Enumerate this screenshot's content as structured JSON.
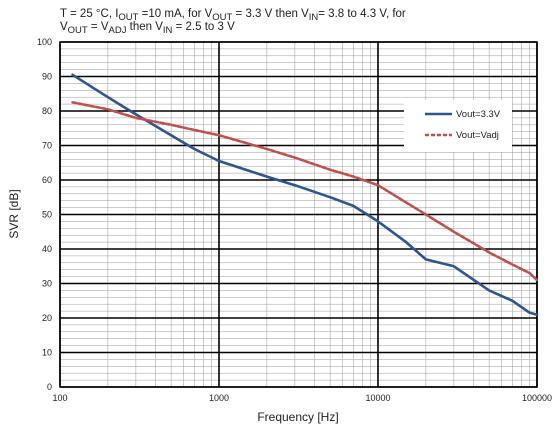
{
  "chart_data": {
    "type": "line",
    "title_line1_parts": [
      "T = 25 °C, I",
      "OUT",
      " =10 mA, for V",
      "OUT",
      " = 3.3 V then V",
      "IN",
      "= 3.8 to 4.3 V, for"
    ],
    "title_line2_parts": [
      "V",
      "OUT",
      " = V",
      "ADJ",
      " then V",
      "IN",
      " = 2.5 to 3 V"
    ],
    "xlabel": "Frequency [Hz]",
    "ylabel": "SVR [dB]",
    "xscale": "log",
    "xlim": [
      100,
      100000
    ],
    "ylim": [
      0,
      100
    ],
    "x_ticks": [
      100,
      1000,
      10000,
      100000
    ],
    "x_tick_labels": [
      "100",
      "1000",
      "10000",
      "100000"
    ],
    "y_ticks": [
      0,
      10,
      20,
      30,
      40,
      50,
      60,
      70,
      80,
      90,
      100
    ],
    "y_tick_labels": [
      "0",
      "10",
      "20",
      "30",
      "40",
      "50",
      "60",
      "70",
      "80",
      "90",
      "100"
    ],
    "grid": true,
    "legend_position": "upper-right",
    "series": [
      {
        "name": "Vout=3.3V",
        "color": "#2e5590",
        "dash": "solid",
        "x": [
          120,
          200,
          300,
          500,
          700,
          1000,
          2000,
          3000,
          5000,
          7000,
          10000,
          15000,
          20000,
          30000,
          50000,
          70000,
          90000,
          100000
        ],
        "y": [
          90.5,
          84,
          79,
          73,
          69,
          65.5,
          61,
          58.5,
          55,
          52.5,
          48,
          42,
          37,
          35,
          28,
          25,
          21.5,
          21
        ]
      },
      {
        "name": "Vout=Vadj",
        "color": "#c0504d",
        "dash": "dashed",
        "x": [
          120,
          200,
          300,
          500,
          700,
          1000,
          2000,
          3000,
          5000,
          7000,
          10000,
          15000,
          20000,
          30000,
          50000,
          70000,
          90000,
          100000
        ],
        "y": [
          82.5,
          80.5,
          78,
          76,
          74.5,
          73,
          69,
          66.5,
          63,
          61,
          58.5,
          53.5,
          50,
          45,
          39,
          35.5,
          33,
          31
        ]
      }
    ]
  }
}
